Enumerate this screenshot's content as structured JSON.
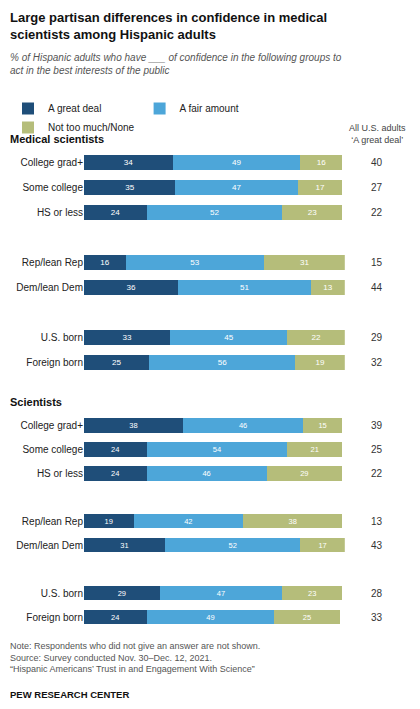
{
  "chart_data": [
    {
      "type": "bar",
      "orientation": "horizontal",
      "stacked": true,
      "data_labels": true,
      "tick_labels": "y",
      "grid": false,
      "legend": "top",
      "title": "Large partisan differences in confidence in medical\nscientists among Hispanic adults",
      "subtitle": "% of Hispanic adults who have ___ of confidence in the following groups to\nact in the best interests of the public",
      "section_label": "Medical scientists",
      "categories": [
        "College grad+",
        "Some college",
        "HS or less",
        null,
        "Rep/lean Rep",
        "Dem/lean Dem",
        null,
        "U.S. born",
        "Foreign born"
      ],
      "series": [
        {
          "name": "A great deal",
          "color": "#1f4e79",
          "values": [
            34,
            35,
            24,
            null,
            16,
            36,
            null,
            33,
            25
          ]
        },
        {
          "name": "A fair amount",
          "color": "#4da6d9",
          "values": [
            49,
            47,
            52,
            null,
            53,
            51,
            null,
            45,
            56
          ]
        },
        {
          "name": "Not too much/None",
          "color": "#b5bd7a",
          "values": [
            16,
            17,
            23,
            null,
            31,
            13,
            null,
            22,
            19
          ]
        }
      ],
      "us_adults": {
        "header": "All U.S. adults\n‘A great deal’",
        "values": [
          40,
          27,
          22,
          null,
          15,
          44,
          null,
          29,
          32
        ]
      },
      "xlim": [
        0,
        100
      ]
    },
    {
      "type": "bar",
      "orientation": "horizontal",
      "stacked": true,
      "data_labels": true,
      "tick_labels": "y",
      "grid": false,
      "section_label": "Scientists",
      "categories": [
        "College grad+",
        "Some college",
        "HS or less",
        null,
        "Rep/lean Rep",
        "Dem/lean Dem",
        null,
        "U.S. born",
        "Foreign born"
      ],
      "series": [
        {
          "name": "A great deal",
          "color": "#1f4e79",
          "values": [
            38,
            24,
            24,
            null,
            19,
            31,
            null,
            29,
            24
          ]
        },
        {
          "name": "A fair amount",
          "color": "#4da6d9",
          "values": [
            46,
            54,
            46,
            null,
            42,
            52,
            null,
            47,
            49
          ]
        },
        {
          "name": "Not too much/None",
          "color": "#b5bd7a",
          "values": [
            15,
            21,
            29,
            null,
            38,
            17,
            null,
            23,
            25
          ]
        }
      ],
      "us_adults": {
        "values": [
          39,
          25,
          22,
          null,
          13,
          43,
          null,
          28,
          33
        ]
      },
      "xlim": [
        0,
        100
      ],
      "note": "Note: Respondents who did not give an answer are not shown.\nSource: Survey conducted Nov. 30–Dec. 12, 2021.\n“Hispanic Americans’ Trust in and Engagement With Science”",
      "source": "PEW RESEARCH CENTER"
    }
  ]
}
